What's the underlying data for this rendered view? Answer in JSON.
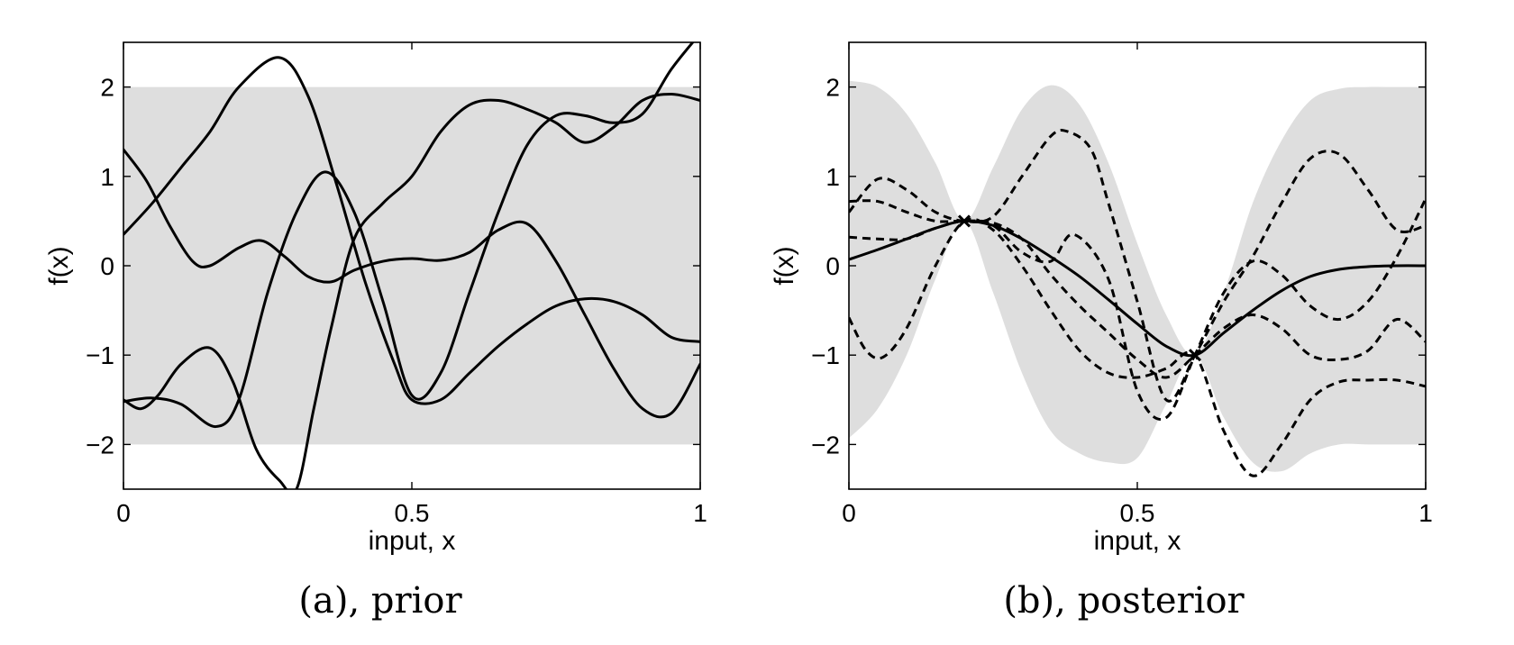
{
  "colors": {
    "band": "#dedede",
    "line": "#000000",
    "frame": "#000000"
  },
  "chart_data": [
    {
      "type": "line",
      "caption": "(a), prior",
      "xlabel": "input, x",
      "ylabel": "f(x)",
      "xlim": [
        0,
        1
      ],
      "ylim": [
        -2.5,
        2.5
      ],
      "xticks": [
        {
          "v": 0,
          "label": "0"
        },
        {
          "v": 0.5,
          "label": "0.5"
        },
        {
          "v": 1,
          "label": "1"
        }
      ],
      "yticks": [
        {
          "v": -2,
          "label": "−2"
        },
        {
          "v": -1,
          "label": "−1"
        },
        {
          "v": 0,
          "label": "0"
        },
        {
          "v": 1,
          "label": "1"
        },
        {
          "v": 2,
          "label": "2"
        }
      ],
      "band": {
        "x": [
          0,
          1
        ],
        "upper": [
          2,
          2
        ],
        "lower": [
          -2,
          -2
        ]
      },
      "series": [
        {
          "style": "solid",
          "x": [
            0,
            0.05,
            0.1,
            0.15,
            0.2,
            0.27,
            0.32,
            0.37,
            0.42,
            0.47,
            0.5,
            0.55,
            0.6,
            0.65,
            0.7,
            0.75,
            0.8,
            0.85,
            0.9,
            0.95,
            1.0
          ],
          "y": [
            0.35,
            0.7,
            1.1,
            1.5,
            2.0,
            2.33,
            1.9,
            0.9,
            -0.2,
            -1.1,
            -1.5,
            -1.5,
            -1.2,
            -0.9,
            -0.65,
            -0.45,
            -0.37,
            -0.4,
            -0.55,
            -0.8,
            -0.85
          ]
        },
        {
          "style": "solid",
          "x": [
            0,
            0.04,
            0.08,
            0.12,
            0.15,
            0.2,
            0.24,
            0.28,
            0.32,
            0.36,
            0.4,
            0.45,
            0.5,
            0.55,
            0.6,
            0.65,
            0.7,
            0.75,
            0.8,
            0.85,
            0.9,
            0.95,
            1.0
          ],
          "y": [
            1.3,
            0.95,
            0.45,
            0.05,
            0.0,
            0.2,
            0.28,
            0.1,
            -0.12,
            -0.18,
            -0.05,
            0.05,
            0.08,
            0.06,
            0.15,
            0.4,
            0.47,
            0.05,
            -0.55,
            -1.15,
            -1.6,
            -1.65,
            -1.1
          ]
        },
        {
          "style": "solid",
          "x": [
            0,
            0.03,
            0.06,
            0.1,
            0.15,
            0.19,
            0.23,
            0.27,
            0.3,
            0.33,
            0.36,
            0.4,
            0.45,
            0.5,
            0.55,
            0.6,
            0.65,
            0.7,
            0.75,
            0.8,
            0.85,
            0.9,
            0.95,
            1.0
          ],
          "y": [
            -1.5,
            -1.6,
            -1.45,
            -1.1,
            -0.92,
            -1.3,
            -2.05,
            -2.4,
            -2.5,
            -1.6,
            -0.7,
            0.3,
            0.7,
            1.0,
            1.5,
            1.8,
            1.85,
            1.75,
            1.6,
            1.38,
            1.55,
            1.85,
            1.92,
            1.85
          ]
        },
        {
          "style": "solid",
          "x": [
            0,
            0.05,
            0.1,
            0.16,
            0.2,
            0.25,
            0.3,
            0.35,
            0.4,
            0.45,
            0.5,
            0.55,
            0.6,
            0.65,
            0.7,
            0.75,
            0.8,
            0.85,
            0.9,
            0.95,
            1.0
          ],
          "y": [
            -1.52,
            -1.48,
            -1.55,
            -1.8,
            -1.5,
            -0.3,
            0.6,
            1.05,
            0.6,
            -0.4,
            -1.45,
            -1.2,
            -0.3,
            0.6,
            1.35,
            1.68,
            1.68,
            1.6,
            1.7,
            2.2,
            2.6
          ]
        }
      ]
    },
    {
      "type": "line",
      "caption": "(b), posterior",
      "xlabel": "input, x",
      "ylabel": "f(x)",
      "xlim": [
        0,
        1
      ],
      "ylim": [
        -2.5,
        2.5
      ],
      "xticks": [
        {
          "v": 0,
          "label": "0"
        },
        {
          "v": 0.5,
          "label": "0.5"
        },
        {
          "v": 1,
          "label": "1"
        }
      ],
      "yticks": [
        {
          "v": -2,
          "label": "−2"
        },
        {
          "v": -1,
          "label": "−1"
        },
        {
          "v": 0,
          "label": "0"
        },
        {
          "v": 1,
          "label": "1"
        },
        {
          "v": 2,
          "label": "2"
        }
      ],
      "observations": [
        {
          "x": 0.2,
          "y": 0.5
        },
        {
          "x": 0.6,
          "y": -1.0
        }
      ],
      "band": {
        "x": [
          0,
          0.05,
          0.1,
          0.15,
          0.2,
          0.25,
          0.3,
          0.35,
          0.4,
          0.45,
          0.5,
          0.55,
          0.6,
          0.65,
          0.7,
          0.75,
          0.8,
          0.85,
          0.9,
          0.95,
          1.0
        ],
        "upper": [
          2.07,
          2.0,
          1.7,
          1.15,
          0.5,
          1.1,
          1.75,
          2.02,
          1.8,
          1.15,
          0.25,
          -0.55,
          -1.0,
          -0.3,
          0.7,
          1.4,
          1.85,
          1.98,
          2.0,
          2.0,
          2.0
        ],
        "lower": [
          -1.93,
          -1.6,
          -1.0,
          -0.15,
          0.5,
          -0.3,
          -1.2,
          -1.85,
          -2.1,
          -2.2,
          -2.15,
          -1.55,
          -1.0,
          -1.7,
          -2.2,
          -2.3,
          -2.1,
          -2.0,
          -2.0,
          -2.0,
          -2.0
        ]
      },
      "series": [
        {
          "style": "solid",
          "x": [
            0,
            0.05,
            0.1,
            0.15,
            0.2,
            0.25,
            0.3,
            0.35,
            0.4,
            0.45,
            0.5,
            0.55,
            0.6,
            0.65,
            0.7,
            0.75,
            0.8,
            0.85,
            0.9,
            0.95,
            1.0
          ],
          "y": [
            0.07,
            0.18,
            0.3,
            0.42,
            0.5,
            0.45,
            0.3,
            0.1,
            -0.12,
            -0.38,
            -0.65,
            -0.9,
            -1.0,
            -0.75,
            -0.5,
            -0.28,
            -0.12,
            -0.04,
            -0.01,
            0.0,
            0.0
          ]
        },
        {
          "style": "dashed",
          "x": [
            0,
            0.05,
            0.1,
            0.15,
            0.2,
            0.25,
            0.3,
            0.35,
            0.38,
            0.42,
            0.45,
            0.5,
            0.55,
            0.6,
            0.65,
            0.7,
            0.75,
            0.8,
            0.85,
            0.9,
            0.95,
            1.0
          ],
          "y": [
            0.6,
            0.97,
            0.85,
            0.6,
            0.5,
            0.55,
            1.0,
            1.45,
            1.5,
            1.3,
            0.7,
            -0.4,
            -1.5,
            -1.0,
            -0.4,
            0.1,
            0.7,
            1.2,
            1.25,
            0.85,
            0.4,
            0.45
          ]
        },
        {
          "style": "dashed",
          "x": [
            0,
            0.03,
            0.06,
            0.1,
            0.15,
            0.2,
            0.25,
            0.3,
            0.35,
            0.4,
            0.45,
            0.5,
            0.55,
            0.6,
            0.65,
            0.7,
            0.75,
            0.8,
            0.85,
            0.9,
            0.95,
            1.0
          ],
          "y": [
            -0.58,
            -0.95,
            -1.02,
            -0.7,
            0.0,
            0.5,
            0.4,
            0.0,
            -0.5,
            -0.95,
            -1.2,
            -1.25,
            -1.15,
            -1.0,
            -1.85,
            -2.35,
            -2.0,
            -1.5,
            -1.3,
            -1.28,
            -1.28,
            -1.35
          ]
        },
        {
          "style": "dashed",
          "x": [
            0,
            0.05,
            0.1,
            0.15,
            0.2,
            0.25,
            0.3,
            0.35,
            0.39,
            0.45,
            0.5,
            0.55,
            0.6,
            0.65,
            0.7,
            0.75,
            0.8,
            0.85,
            0.9,
            0.95,
            1.0
          ],
          "y": [
            0.32,
            0.3,
            0.3,
            0.42,
            0.5,
            0.45,
            0.15,
            0.05,
            0.35,
            -0.15,
            -1.4,
            -1.7,
            -1.0,
            -0.3,
            0.05,
            -0.1,
            -0.45,
            -0.6,
            -0.4,
            0.1,
            0.75
          ]
        },
        {
          "style": "dashed",
          "x": [
            0,
            0.05,
            0.1,
            0.15,
            0.2,
            0.25,
            0.3,
            0.35,
            0.4,
            0.45,
            0.5,
            0.55,
            0.6,
            0.65,
            0.7,
            0.75,
            0.8,
            0.85,
            0.9,
            0.95,
            1.0
          ],
          "y": [
            0.72,
            0.72,
            0.6,
            0.5,
            0.5,
            0.48,
            0.3,
            -0.1,
            -0.45,
            -0.75,
            -1.05,
            -1.25,
            -1.0,
            -0.7,
            -0.55,
            -0.7,
            -1.0,
            -1.05,
            -0.95,
            -0.6,
            -0.85
          ]
        }
      ]
    }
  ]
}
